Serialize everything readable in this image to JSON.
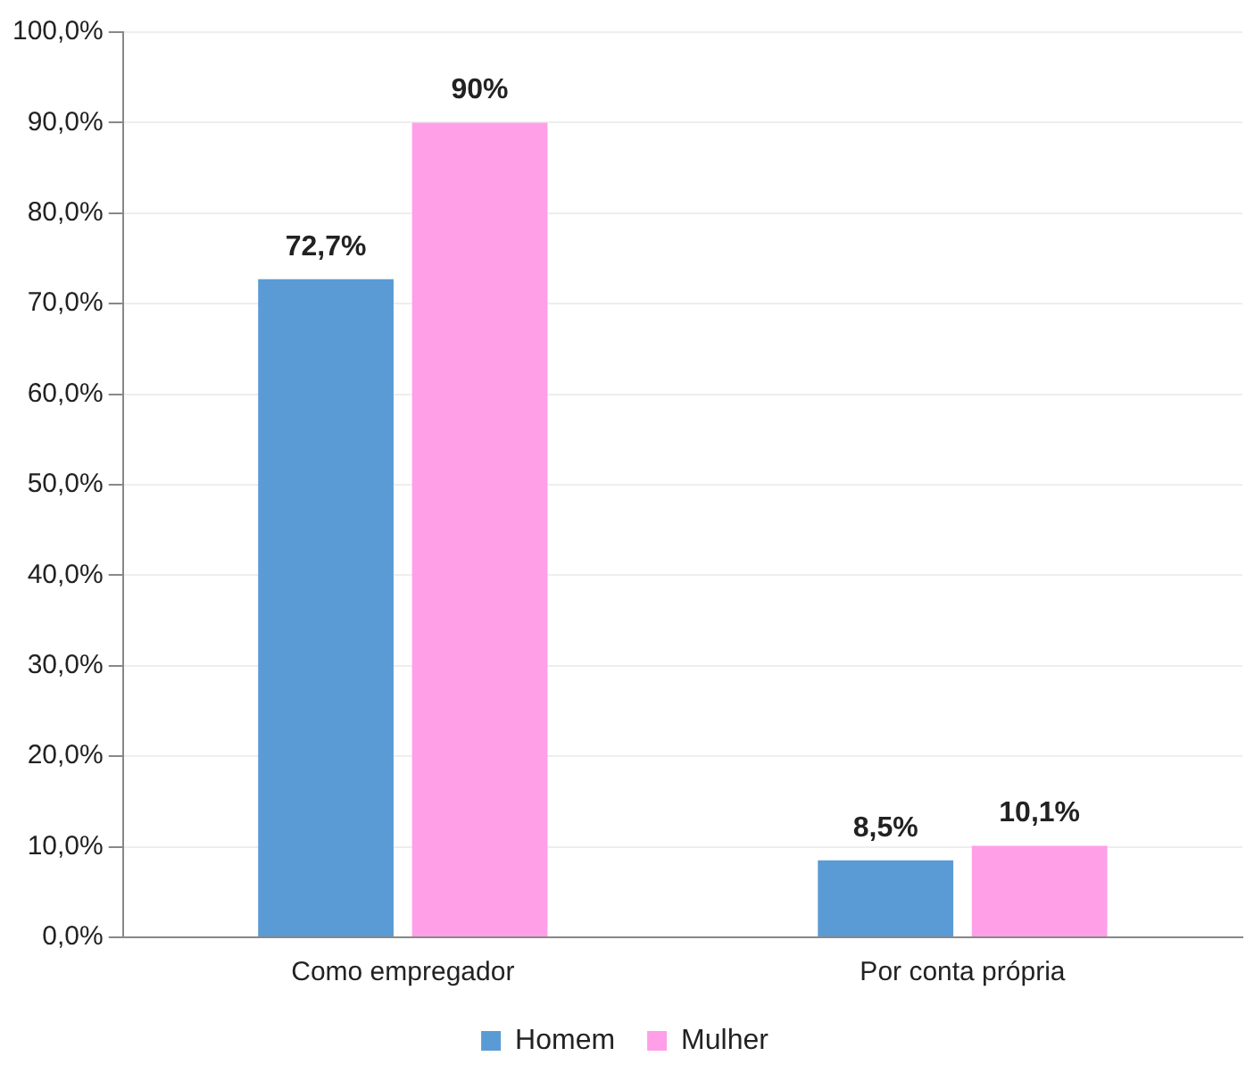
{
  "chart_data": {
    "type": "bar",
    "categories": [
      "Como empregador",
      "Por conta própria"
    ],
    "series": [
      {
        "name": "Homem",
        "color": "#5b9bd5",
        "values": [
          72.7,
          8.5
        ],
        "value_labels": [
          "72,7%",
          "8,5%"
        ]
      },
      {
        "name": "Mulher",
        "color": "#ff9fe8",
        "values": [
          90,
          10.1
        ],
        "value_labels": [
          "90%",
          "10,1%"
        ]
      }
    ],
    "ylim": [
      0,
      100
    ],
    "yticks": [
      {
        "value": 0,
        "label": "0,0%"
      },
      {
        "value": 10,
        "label": "10,0%"
      },
      {
        "value": 20,
        "label": "20,0%"
      },
      {
        "value": 30,
        "label": "30,0%"
      },
      {
        "value": 40,
        "label": "40,0%"
      },
      {
        "value": 50,
        "label": "50,0%"
      },
      {
        "value": 60,
        "label": "60,0%"
      },
      {
        "value": 70,
        "label": "70,0%"
      },
      {
        "value": 80,
        "label": "80,0%"
      },
      {
        "value": 90,
        "label": "90,0%"
      },
      {
        "value": 100,
        "label": "100,0%"
      }
    ],
    "grid": "y",
    "legend": "bottom"
  }
}
